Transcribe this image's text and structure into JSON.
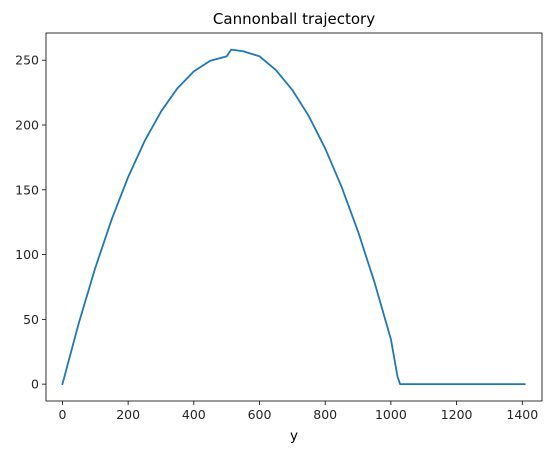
{
  "chart_data": {
    "type": "line",
    "title": "Cannonball trajectory",
    "xlabel": "y",
    "ylabel": "",
    "xlim": [
      -50,
      1460
    ],
    "ylim": [
      -13,
      271
    ],
    "xticks": [
      0,
      200,
      400,
      600,
      800,
      1000,
      1200,
      1400
    ],
    "yticks": [
      0,
      50,
      100,
      150,
      200,
      250
    ],
    "grid": false,
    "colors": {
      "line": "#1f77b4",
      "axes": "#000000",
      "text": "#262626"
    },
    "series": [
      {
        "name": "trajectory",
        "x": [
          0,
          50,
          100,
          150,
          200,
          250,
          300,
          350,
          400,
          450,
          500,
          514,
          550,
          600,
          650,
          700,
          750,
          800,
          850,
          900,
          950,
          1000,
          1020,
          1028,
          1100,
          1200,
          1300,
          1408
        ],
        "y": [
          0,
          47.3,
          89.7,
          127.2,
          159.8,
          187.5,
          210.3,
          228.3,
          241.4,
          249.6,
          253.0,
          258.2,
          256.9,
          253.0,
          242.4,
          227.0,
          206.9,
          181.9,
          152.2,
          117.8,
          78.6,
          34.7,
          6.0,
          0,
          0,
          0,
          0,
          0
        ]
      }
    ]
  }
}
